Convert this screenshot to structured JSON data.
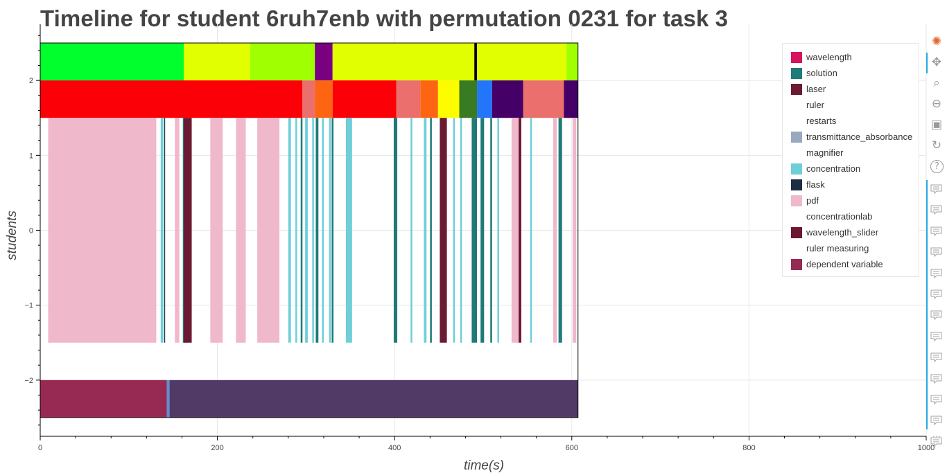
{
  "title": "Timeline for student 6ruh7enb with permutation 0231 for task 3",
  "toolbar": {
    "tools": [
      "bokeh-logo-icon",
      "pan-icon",
      "box-zoom-icon",
      "wheel-zoom-icon",
      "save-icon",
      "reset-icon",
      "help-icon"
    ],
    "hover_tool_count": 13,
    "more": "⋯"
  },
  "legend": {
    "items": [
      {
        "label": "wavelength",
        "color": "#d6135c"
      },
      {
        "label": "solution",
        "color": "#1f7a78"
      },
      {
        "label": "laser",
        "color": "#6b1a32"
      },
      {
        "label": "ruler",
        "color": "#ffffff"
      },
      {
        "label": "restarts",
        "color": "#ffffff"
      },
      {
        "label": "transmittance_absorbance",
        "color": "#9aa9bf"
      },
      {
        "label": "magnifier",
        "color": "#ffffff"
      },
      {
        "label": "concentration",
        "color": "#6fcfd9"
      },
      {
        "label": "flask",
        "color": "#1b2e44"
      },
      {
        "label": "pdf",
        "color": "#f0b8cb"
      },
      {
        "label": "concentrationlab",
        "color": "#ffffff"
      },
      {
        "label": "wavelength_slider",
        "color": "#6e1830"
      },
      {
        "label": "ruler measuring",
        "color": "#ffffff"
      },
      {
        "label": "dependent variable",
        "color": "#962a52"
      }
    ]
  },
  "chart_data": {
    "type": "timeline",
    "title": "Timeline for student 6ruh7enb with permutation 0231 for task 3",
    "xlabel": "time(s)",
    "ylabel": "students",
    "xlim": [
      0,
      1000
    ],
    "ylim": [
      -2.75,
      2.75
    ],
    "xticks": [
      0,
      200,
      400,
      600,
      800,
      1000
    ],
    "yticks": [
      2,
      1,
      0,
      -1,
      -2
    ],
    "ytick_labels": [
      "2",
      "1",
      "0",
      "−1",
      "−2"
    ],
    "grid": true,
    "legend_position": "top-right",
    "tracks": [
      {
        "name": "top color band",
        "y_range": [
          2,
          2.5
        ],
        "segments": [
          {
            "start": 0,
            "end": 162,
            "color": "#00ff2c"
          },
          {
            "start": 162,
            "end": 237,
            "color": "#e1ff00"
          },
          {
            "start": 237,
            "end": 310,
            "color": "#a0ff00"
          },
          {
            "start": 310,
            "end": 330,
            "color": "#7a0082"
          },
          {
            "start": 330,
            "end": 490,
            "color": "#e1ff00"
          },
          {
            "start": 490,
            "end": 493,
            "color": "#000000"
          },
          {
            "start": 493,
            "end": 594,
            "color": "#e1ff00"
          },
          {
            "start": 594,
            "end": 607,
            "color": "#a0ff00"
          }
        ]
      },
      {
        "name": "middle color band",
        "y_range": [
          1.5,
          2
        ],
        "segments": [
          {
            "start": 0,
            "end": 296,
            "color": "#fb0006"
          },
          {
            "start": 296,
            "end": 310,
            "color": "#eb6f6c"
          },
          {
            "start": 310,
            "end": 330,
            "color": "#fd6512"
          },
          {
            "start": 330,
            "end": 402,
            "color": "#fb0006"
          },
          {
            "start": 402,
            "end": 429,
            "color": "#eb6f6c"
          },
          {
            "start": 429,
            "end": 449,
            "color": "#fd6512"
          },
          {
            "start": 449,
            "end": 473,
            "color": "#fdfd00"
          },
          {
            "start": 473,
            "end": 493,
            "color": "#387b22"
          },
          {
            "start": 493,
            "end": 510,
            "color": "#2375fc"
          },
          {
            "start": 510,
            "end": 545,
            "color": "#450067"
          },
          {
            "start": 545,
            "end": 591,
            "color": "#eb6f6c"
          },
          {
            "start": 591,
            "end": 607,
            "color": "#450067"
          }
        ]
      },
      {
        "name": "event band",
        "y_range": [
          -1.5,
          1.5
        ],
        "segments": [
          {
            "start": 9,
            "end": 131,
            "color": "#f0b8cb"
          },
          {
            "start": 136,
            "end": 139,
            "color": "#6fcfd9"
          },
          {
            "start": 140,
            "end": 141,
            "color": "#1b2e44"
          },
          {
            "start": 152,
            "end": 157,
            "color": "#f0b8cb"
          },
          {
            "start": 161,
            "end": 163,
            "color": "#1f7a78"
          },
          {
            "start": 163,
            "end": 168,
            "color": "#f0b8cb"
          },
          {
            "start": 162,
            "end": 171,
            "color": "#6b1a32"
          },
          {
            "start": 192,
            "end": 206,
            "color": "#f0b8cb"
          },
          {
            "start": 221,
            "end": 232,
            "color": "#f0b8cb"
          },
          {
            "start": 245,
            "end": 270,
            "color": "#f0b8cb"
          },
          {
            "start": 280,
            "end": 283,
            "color": "#6fcfd9"
          },
          {
            "start": 288,
            "end": 290,
            "color": "#6fcfd9"
          },
          {
            "start": 294,
            "end": 296,
            "color": "#1f7a78"
          },
          {
            "start": 299,
            "end": 302,
            "color": "#6fcfd9"
          },
          {
            "start": 307,
            "end": 309,
            "color": "#6fcfd9"
          },
          {
            "start": 311,
            "end": 314,
            "color": "#1f7a78"
          },
          {
            "start": 318,
            "end": 320,
            "color": "#6fcfd9"
          },
          {
            "start": 326,
            "end": 328,
            "color": "#6fcfd9"
          },
          {
            "start": 329,
            "end": 331,
            "color": "#1f7a78"
          },
          {
            "start": 345,
            "end": 352,
            "color": "#6fcfd9"
          },
          {
            "start": 399,
            "end": 403,
            "color": "#1f7a78"
          },
          {
            "start": 418,
            "end": 420,
            "color": "#6fcfd9"
          },
          {
            "start": 433,
            "end": 436,
            "color": "#6fcfd9"
          },
          {
            "start": 440,
            "end": 442,
            "color": "#1f7a78"
          },
          {
            "start": 451,
            "end": 459,
            "color": "#6b1a32"
          },
          {
            "start": 466,
            "end": 468,
            "color": "#6fcfd9"
          },
          {
            "start": 474,
            "end": 476,
            "color": "#6fcfd9"
          },
          {
            "start": 487,
            "end": 493,
            "color": "#1f7a78"
          },
          {
            "start": 497,
            "end": 501,
            "color": "#1f7a78"
          },
          {
            "start": 508,
            "end": 510,
            "color": "#1f7a78"
          },
          {
            "start": 516,
            "end": 518,
            "color": "#6fcfd9"
          },
          {
            "start": 532,
            "end": 540,
            "color": "#f0b8cb"
          },
          {
            "start": 540,
            "end": 543,
            "color": "#6b1a32"
          },
          {
            "start": 553,
            "end": 555,
            "color": "#6fcfd9"
          },
          {
            "start": 579,
            "end": 583,
            "color": "#f0b8cb"
          },
          {
            "start": 585,
            "end": 589,
            "color": "#1f7a78"
          },
          {
            "start": 601,
            "end": 605,
            "color": "#f0b8cb"
          }
        ]
      },
      {
        "name": "bottom band",
        "y_range": [
          -2.5,
          -2
        ],
        "segments": [
          {
            "start": 0,
            "end": 143,
            "color": "#962a52"
          },
          {
            "start": 143,
            "end": 146,
            "color": "#5b8fd0"
          },
          {
            "start": 146,
            "end": 607,
            "color": "#523a66"
          }
        ]
      }
    ]
  }
}
